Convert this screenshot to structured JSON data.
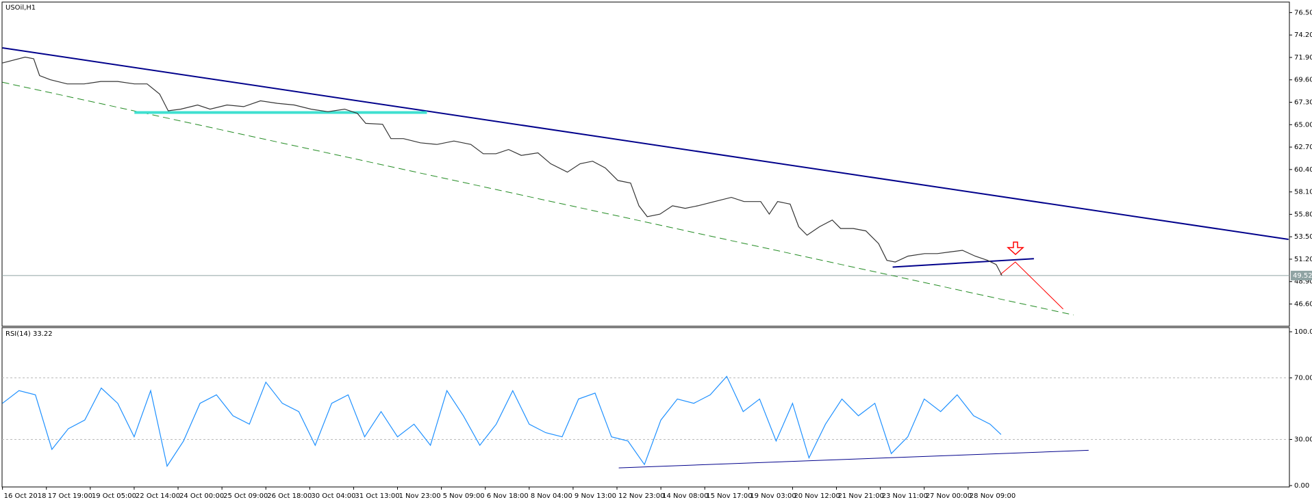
{
  "chart_data": [
    {
      "type": "line",
      "title": "USOil,H1",
      "color": "#333333",
      "xlim": [
        -0.2,
        586.4
      ],
      "ylim": [
        44.32,
        77.58
      ],
      "yticks": [
        {
          "value": 76.5,
          "label": "76.50"
        },
        {
          "value": 74.2,
          "label": "74.20"
        },
        {
          "value": 71.9,
          "label": "71.90"
        },
        {
          "value": 69.6,
          "label": "69.60"
        },
        {
          "value": 67.3,
          "label": "67.30"
        },
        {
          "value": 65,
          "label": "65.00"
        },
        {
          "value": 62.7,
          "label": "62.70"
        },
        {
          "value": 60.4,
          "label": "60.40"
        },
        {
          "value": 58.1,
          "label": "58.10"
        },
        {
          "value": 55.8,
          "label": "55.80"
        },
        {
          "value": 53.5,
          "label": "53.50"
        },
        {
          "value": 51.2,
          "label": "51.20"
        },
        {
          "value": 48.9,
          "label": "48.90"
        },
        {
          "value": 46.6,
          "label": "46.60"
        }
      ],
      "last_price": 49.52,
      "x": [
        0,
        10.3,
        14.2,
        16.9,
        21.8,
        29.5,
        37.2,
        44.8,
        52.5,
        60.1,
        65.9,
        71.6,
        75.5,
        81.2,
        88.9,
        94.6,
        102.3,
        109.9,
        117.6,
        125.3,
        132.9,
        140.6,
        148.3,
        155.9,
        161.7,
        165.5,
        173.2,
        177,
        182.7,
        190.4,
        198,
        205.7,
        213.4,
        219.1,
        224.9,
        230.6,
        236.4,
        244,
        249.8,
        257.4,
        263.2,
        268.9,
        274.7,
        280.4,
        286.2,
        290,
        293.8,
        299.6,
        305.3,
        311.1,
        316.8,
        324.5,
        332.1,
        337.9,
        345.5,
        349.4,
        353.2,
        358.9,
        362.8,
        366.6,
        372.3,
        378.1,
        381.9,
        387.7,
        393.4,
        399.2,
        403,
        406.8,
        412.6,
        420.2,
        426,
        431.7,
        437.4,
        443.2,
        448.9,
        452.8,
        455.4
      ],
      "values": [
        71.33,
        71.93,
        71.76,
        70.04,
        69.61,
        69.18,
        69.18,
        69.43,
        69.43,
        69.18,
        69.18,
        68.14,
        66.42,
        66.59,
        67.02,
        66.59,
        67.02,
        66.85,
        67.45,
        67.19,
        67.02,
        66.59,
        66.33,
        66.59,
        66.16,
        65.13,
        65.04,
        63.57,
        63.57,
        63.14,
        62.97,
        63.32,
        62.97,
        62.02,
        62.02,
        62.45,
        61.85,
        62.11,
        60.99,
        60.13,
        60.99,
        61.25,
        60.56,
        59.27,
        59.01,
        56.68,
        55.56,
        55.82,
        56.68,
        56.42,
        56.68,
        57.11,
        57.54,
        57.11,
        57.11,
        55.82,
        57.11,
        56.85,
        54.53,
        53.66,
        54.53,
        55.22,
        54.35,
        54.35,
        54.1,
        52.8,
        51.08,
        50.91,
        51.51,
        51.77,
        51.77,
        51.94,
        52.11,
        51.51,
        51.08,
        50.65,
        49.52
      ],
      "lines": [
        {
          "color": "#00008b",
          "style": "solid",
          "width": 2,
          "x": [
            0,
            586
          ],
          "values": [
            72.88,
            53.23
          ]
        },
        {
          "color": "#228b22",
          "style": "dashed",
          "width": 1,
          "x": [
            0,
            488
          ],
          "values": [
            69.35,
            45.48
          ]
        },
        {
          "color": "#40e0d0",
          "style": "solid",
          "width": 4,
          "x": [
            60.1,
            193.4
          ],
          "values": [
            66.25,
            66.25
          ]
        },
        {
          "color": "#00008b",
          "style": "solid",
          "width": 2,
          "x": [
            405.6,
            470
          ],
          "values": [
            50.39,
            51.25
          ]
        },
        {
          "color": "#ff0000",
          "style": "solid",
          "width": 1,
          "x": [
            454.6,
            461.5,
            483.3
          ],
          "values": [
            49.61,
            50.91,
            46.08
          ]
        }
      ]
    },
    {
      "type": "line",
      "title": "RSI(14) 33.22",
      "color": "#1e90ff",
      "xlim": [
        -0.2,
        586.4
      ],
      "ylim": [
        -0.9,
        102.7
      ],
      "yticks": [
        {
          "value": 100,
          "label": "100.00"
        },
        {
          "value": 70,
          "label": "70.00"
        },
        {
          "value": 30,
          "label": "30.00"
        },
        {
          "value": 0,
          "label": "0.00"
        }
      ],
      "levels": [
        70,
        30
      ],
      "xticks": [
        {
          "value": 0,
          "label": "16 Oct 2018"
        },
        {
          "value": 20,
          "label": "17 Oct 19:00"
        },
        {
          "value": 40,
          "label": "19 Oct 05:00"
        },
        {
          "value": 60,
          "label": "22 Oct 14:00"
        },
        {
          "value": 80,
          "label": "24 Oct 00:00"
        },
        {
          "value": 100,
          "label": "25 Oct 09:00"
        },
        {
          "value": 120,
          "label": "26 Oct 18:00"
        },
        {
          "value": 140,
          "label": "30 Oct 04:00"
        },
        {
          "value": 160,
          "label": "31 Oct 13:00"
        },
        {
          "value": 180,
          "label": "1 Nov 23:00"
        },
        {
          "value": 200,
          "label": "5 Nov 09:00"
        },
        {
          "value": 220,
          "label": "6 Nov 18:00"
        },
        {
          "value": 240,
          "label": "8 Nov 04:00"
        },
        {
          "value": 260,
          "label": "9 Nov 13:00"
        },
        {
          "value": 280,
          "label": "12 Nov 23:00"
        },
        {
          "value": 300,
          "label": "14 Nov 08:00"
        },
        {
          "value": 320,
          "label": "15 Nov 17:00"
        },
        {
          "value": 340,
          "label": "19 Nov 03:00"
        },
        {
          "value": 360,
          "label": "20 Nov 12:00"
        },
        {
          "value": 380,
          "label": "21 Nov 21:00"
        },
        {
          "value": 400,
          "label": "23 Nov 11:00"
        },
        {
          "value": 420,
          "label": "27 Nov 00:00"
        },
        {
          "value": 440,
          "label": "28 Nov 09:00"
        }
      ],
      "x": [
        0,
        7.5,
        15,
        22.5,
        30,
        37.5,
        45,
        52.5,
        60,
        67.5,
        75,
        82.5,
        90,
        97.5,
        105,
        112.5,
        120,
        127.5,
        135,
        142.5,
        150,
        157.5,
        165,
        172.5,
        180,
        187.5,
        195,
        202.5,
        210,
        217.5,
        225,
        232.5,
        240,
        247.5,
        255,
        262.5,
        270,
        277.5,
        285,
        292.5,
        300,
        307.5,
        315,
        322.5,
        330,
        337.5,
        345,
        352.5,
        360,
        367.5,
        375,
        382.5,
        390,
        397.5,
        405,
        412.5,
        420,
        427.5,
        435,
        442.5,
        450,
        455
      ],
      "values": [
        53.5,
        61.7,
        59,
        23.5,
        37,
        42.6,
        63.4,
        53.5,
        31.7,
        61.7,
        12.6,
        29,
        53.5,
        59,
        45.4,
        39.9,
        67.2,
        53.5,
        48.1,
        26.2,
        53.5,
        59,
        31.7,
        48.1,
        31.7,
        39.9,
        26.2,
        61.7,
        45.4,
        26.2,
        39.9,
        61.7,
        39.9,
        34.4,
        31.7,
        56.3,
        60.1,
        31.7,
        29,
        13.7,
        42.6,
        56.3,
        53.5,
        59,
        71,
        48.1,
        56.3,
        29,
        53.5,
        18,
        39.9,
        56.3,
        45.4,
        53.5,
        20.8,
        31.7,
        56.3,
        48.1,
        59,
        45.4,
        39.9,
        33.22
      ],
      "lines": [
        {
          "color": "#00008b",
          "style": "solid",
          "width": 1,
          "x": [
            280.8,
            494.9
          ],
          "values": [
            11.5,
            22.95
          ]
        }
      ]
    }
  ]
}
